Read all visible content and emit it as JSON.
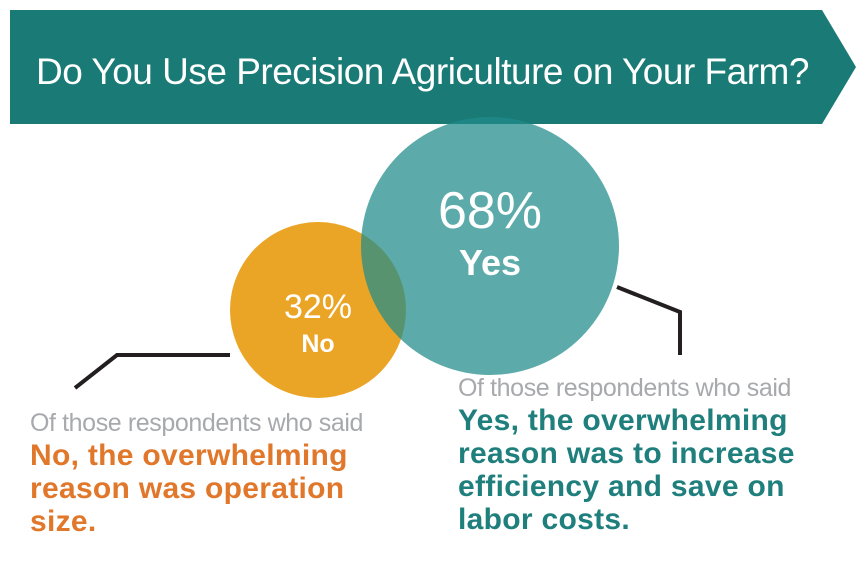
{
  "chart_data": {
    "type": "pie",
    "title": "Do You Use Precision Agriculture on Your Farm?",
    "categories": [
      "No",
      "Yes"
    ],
    "values": [
      32,
      68
    ],
    "value_labels": [
      "32%",
      "68%"
    ],
    "colors": {
      "no": "#eba526",
      "yes": "#1f8c8a",
      "banner": "#1a7b76",
      "no_note": "#e0772a",
      "yes_note": "#1f7f7c",
      "lead_text": "#a7a9ac"
    },
    "annotations": {
      "no": {
        "lead": "Of those respondents who said",
        "body": "No, the overwhelming reason was operation size."
      },
      "yes": {
        "lead": "Of those respondents who said",
        "body": "Yes, the overwhelming reason was to increase efficiency and save on labor costs."
      }
    }
  }
}
